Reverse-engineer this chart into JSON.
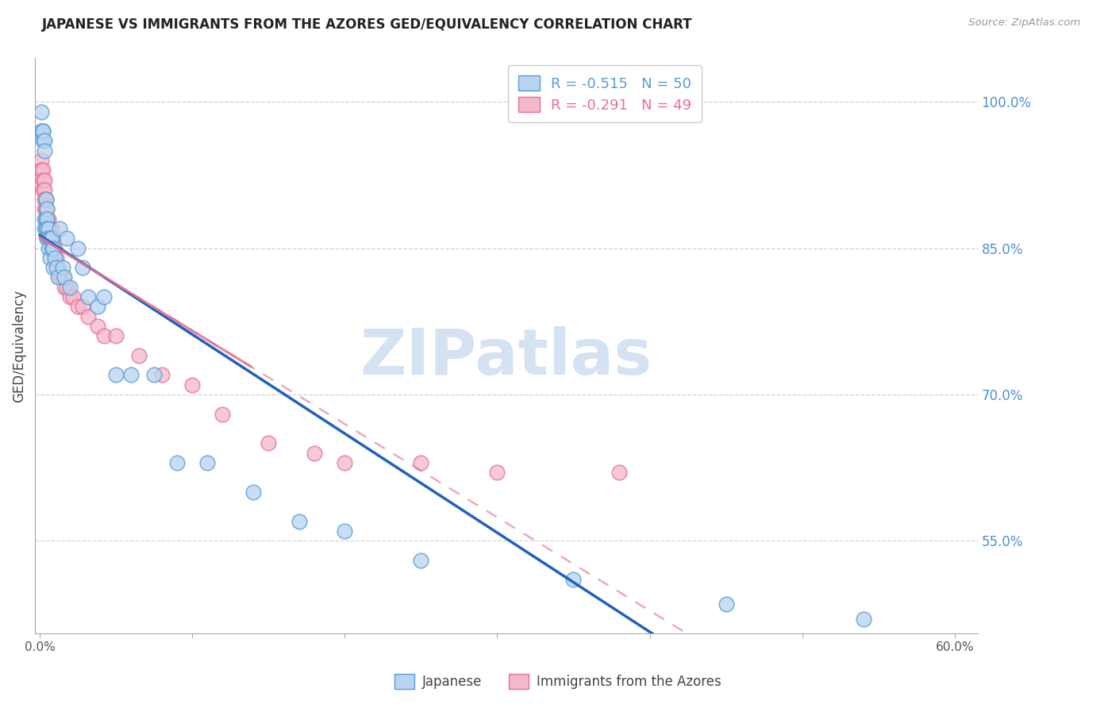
{
  "title": "JAPANESE VS IMMIGRANTS FROM THE AZORES GED/EQUIVALENCY CORRELATION CHART",
  "source": "Source: ZipAtlas.com",
  "ylabel": "GED/Equivalency",
  "y_ticks": [
    0.55,
    0.7,
    0.85,
    1.0
  ],
  "y_tick_labels": [
    "55.0%",
    "70.0%",
    "85.0%",
    "100.0%"
  ],
  "x_min": -0.003,
  "x_max": 0.615,
  "y_min": 0.455,
  "y_max": 1.045,
  "legend_r1": "R = -0.515",
  "legend_n1": "N = 50",
  "legend_r2": "R = -0.291",
  "legend_n2": "N = 49",
  "legend_label1": "Japanese",
  "legend_label2": "Immigrants from the Azores",
  "blue_fill": "#B8D4EE",
  "blue_edge": "#5B9BD5",
  "pink_fill": "#F4B8CC",
  "pink_edge": "#E87090",
  "blue_line": "#2060C0",
  "pink_line": "#E07090",
  "watermark": "ZIPatlas",
  "watermark_color": "#D0DFF0",
  "title_color": "#222222",
  "source_color": "#999999",
  "ytick_color": "#5090D0",
  "grid_color": "#CCCCCC",
  "japanese_x": [
    0.001,
    0.001,
    0.002,
    0.002,
    0.002,
    0.003,
    0.003,
    0.003,
    0.003,
    0.004,
    0.004,
    0.004,
    0.005,
    0.005,
    0.005,
    0.005,
    0.006,
    0.006,
    0.006,
    0.007,
    0.007,
    0.008,
    0.008,
    0.009,
    0.009,
    0.01,
    0.011,
    0.012,
    0.013,
    0.015,
    0.016,
    0.018,
    0.02,
    0.025,
    0.028,
    0.032,
    0.038,
    0.042,
    0.05,
    0.06,
    0.075,
    0.09,
    0.11,
    0.14,
    0.17,
    0.2,
    0.25,
    0.35,
    0.45,
    0.54
  ],
  "japanese_y": [
    0.99,
    0.97,
    0.97,
    0.96,
    0.97,
    0.96,
    0.95,
    0.88,
    0.87,
    0.9,
    0.88,
    0.87,
    0.89,
    0.88,
    0.87,
    0.86,
    0.87,
    0.86,
    0.85,
    0.86,
    0.84,
    0.86,
    0.85,
    0.85,
    0.83,
    0.84,
    0.83,
    0.82,
    0.87,
    0.83,
    0.82,
    0.86,
    0.81,
    0.85,
    0.83,
    0.8,
    0.79,
    0.8,
    0.72,
    0.72,
    0.72,
    0.63,
    0.63,
    0.6,
    0.57,
    0.56,
    0.53,
    0.51,
    0.485,
    0.47
  ],
  "azores_x": [
    0.001,
    0.001,
    0.002,
    0.002,
    0.002,
    0.003,
    0.003,
    0.003,
    0.003,
    0.004,
    0.004,
    0.004,
    0.005,
    0.005,
    0.005,
    0.005,
    0.006,
    0.006,
    0.006,
    0.007,
    0.007,
    0.008,
    0.008,
    0.009,
    0.01,
    0.011,
    0.012,
    0.013,
    0.015,
    0.016,
    0.018,
    0.02,
    0.022,
    0.025,
    0.028,
    0.032,
    0.038,
    0.042,
    0.05,
    0.065,
    0.08,
    0.1,
    0.12,
    0.15,
    0.18,
    0.2,
    0.25,
    0.3,
    0.38
  ],
  "azores_y": [
    0.94,
    0.93,
    0.93,
    0.92,
    0.91,
    0.92,
    0.91,
    0.9,
    0.89,
    0.9,
    0.89,
    0.88,
    0.89,
    0.88,
    0.87,
    0.86,
    0.88,
    0.87,
    0.86,
    0.87,
    0.86,
    0.87,
    0.85,
    0.86,
    0.85,
    0.84,
    0.83,
    0.82,
    0.82,
    0.81,
    0.81,
    0.8,
    0.8,
    0.79,
    0.79,
    0.78,
    0.77,
    0.76,
    0.76,
    0.74,
    0.72,
    0.71,
    0.68,
    0.65,
    0.64,
    0.63,
    0.63,
    0.62,
    0.62
  ]
}
